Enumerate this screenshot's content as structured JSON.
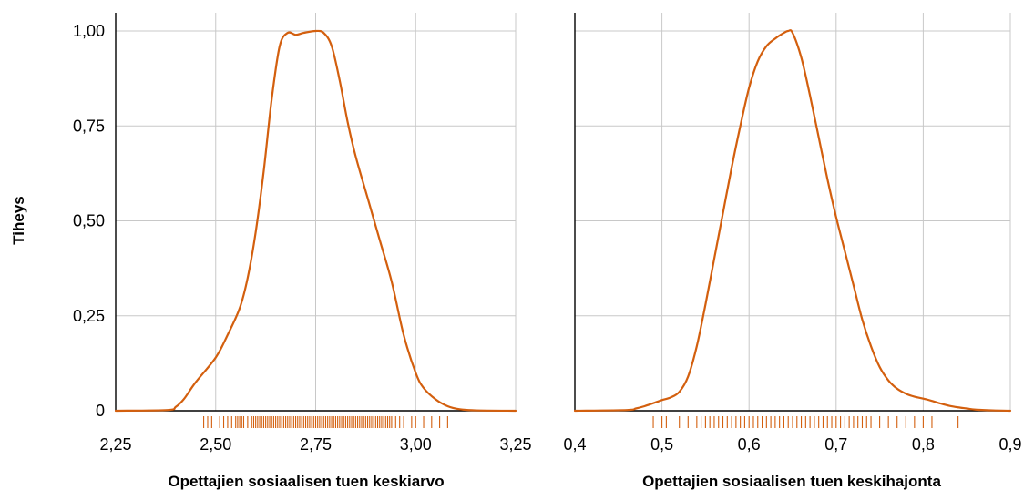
{
  "colors": {
    "density": "#d35f0e",
    "rug": "#d35f0e",
    "grid": "#c8c8c8",
    "axis": "#000000"
  },
  "chart_data": [
    {
      "type": "area",
      "id": "mean",
      "title": "",
      "xlabel": "Opettajien sosiaalisen tuen keskiarvo",
      "ylabel": "Tiheys",
      "xlim": [
        2.25,
        3.25
      ],
      "ylim": [
        0,
        1.0
      ],
      "xticks": [
        2.25,
        2.5,
        2.75,
        3.0,
        3.25
      ],
      "xtick_labels": [
        "2,25",
        "2,50",
        "2,75",
        "3,00",
        "3,25"
      ],
      "yticks": [
        0,
        0.25,
        0.5,
        0.75,
        1.0
      ],
      "ytick_labels": [
        "0",
        "0,25",
        "0,50",
        "0,75",
        "1,00"
      ],
      "grid": true,
      "density": {
        "x": [
          2.25,
          2.38,
          2.4,
          2.42,
          2.45,
          2.5,
          2.53,
          2.56,
          2.58,
          2.6,
          2.62,
          2.64,
          2.66,
          2.68,
          2.7,
          2.72,
          2.75,
          2.77,
          2.79,
          2.81,
          2.83,
          2.85,
          2.88,
          2.91,
          2.94,
          2.97,
          3.0,
          3.02,
          3.05,
          3.08,
          3.11,
          3.15,
          3.25
        ],
        "y": [
          0,
          0.002,
          0.01,
          0.03,
          0.075,
          0.14,
          0.2,
          0.27,
          0.35,
          0.47,
          0.63,
          0.82,
          0.96,
          0.995,
          0.99,
          0.995,
          1.0,
          0.995,
          0.96,
          0.87,
          0.76,
          0.67,
          0.56,
          0.45,
          0.34,
          0.2,
          0.1,
          0.06,
          0.03,
          0.012,
          0.004,
          0.001,
          0
        ]
      },
      "rug": [
        2.47,
        2.48,
        2.49,
        2.51,
        2.52,
        2.53,
        2.54,
        2.55,
        2.555,
        2.56,
        2.565,
        2.57,
        2.58,
        2.59,
        2.595,
        2.6,
        2.605,
        2.61,
        2.615,
        2.62,
        2.625,
        2.63,
        2.635,
        2.64,
        2.645,
        2.65,
        2.655,
        2.66,
        2.665,
        2.67,
        2.675,
        2.68,
        2.685,
        2.69,
        2.695,
        2.7,
        2.705,
        2.71,
        2.715,
        2.72,
        2.725,
        2.73,
        2.735,
        2.74,
        2.745,
        2.75,
        2.755,
        2.76,
        2.765,
        2.77,
        2.775,
        2.78,
        2.785,
        2.79,
        2.795,
        2.8,
        2.805,
        2.81,
        2.815,
        2.82,
        2.825,
        2.83,
        2.835,
        2.84,
        2.845,
        2.85,
        2.855,
        2.86,
        2.865,
        2.87,
        2.875,
        2.88,
        2.885,
        2.89,
        2.895,
        2.9,
        2.905,
        2.91,
        2.915,
        2.92,
        2.925,
        2.93,
        2.935,
        2.94,
        2.95,
        2.96,
        2.97,
        2.99,
        3.0,
        3.02,
        3.04,
        3.06,
        3.08
      ]
    },
    {
      "type": "area",
      "id": "sd",
      "title": "",
      "xlabel": "Opettajien sosiaalisen tuen keskihajonta",
      "ylabel": "",
      "xlim": [
        0.4,
        0.9
      ],
      "ylim": [
        0,
        1.0
      ],
      "xticks": [
        0.4,
        0.5,
        0.6,
        0.7,
        0.8,
        0.9
      ],
      "xtick_labels": [
        "0,4",
        "0,5",
        "0,6",
        "0,7",
        "0,8",
        "0,9"
      ],
      "yticks": [
        0,
        0.25,
        0.5,
        0.75,
        1.0
      ],
      "grid": true,
      "density": {
        "x": [
          0.4,
          0.46,
          0.47,
          0.48,
          0.49,
          0.5,
          0.51,
          0.52,
          0.53,
          0.54,
          0.55,
          0.56,
          0.57,
          0.58,
          0.59,
          0.6,
          0.61,
          0.62,
          0.63,
          0.64,
          0.645,
          0.65,
          0.66,
          0.67,
          0.68,
          0.69,
          0.7,
          0.71,
          0.72,
          0.73,
          0.74,
          0.75,
          0.76,
          0.77,
          0.78,
          0.79,
          0.8,
          0.81,
          0.82,
          0.83,
          0.84,
          0.85,
          0.86,
          0.88,
          0.9
        ],
        "y": [
          0,
          0.002,
          0.006,
          0.012,
          0.02,
          0.028,
          0.035,
          0.05,
          0.09,
          0.17,
          0.28,
          0.4,
          0.52,
          0.64,
          0.75,
          0.85,
          0.92,
          0.96,
          0.98,
          0.995,
          1.0,
          0.995,
          0.93,
          0.83,
          0.72,
          0.61,
          0.51,
          0.42,
          0.33,
          0.24,
          0.17,
          0.115,
          0.08,
          0.058,
          0.045,
          0.037,
          0.032,
          0.026,
          0.019,
          0.013,
          0.009,
          0.006,
          0.003,
          0.001,
          0
        ]
      },
      "rug": [
        0.49,
        0.5,
        0.505,
        0.52,
        0.53,
        0.54,
        0.545,
        0.55,
        0.555,
        0.56,
        0.565,
        0.57,
        0.575,
        0.58,
        0.585,
        0.59,
        0.595,
        0.6,
        0.605,
        0.61,
        0.615,
        0.62,
        0.625,
        0.63,
        0.635,
        0.64,
        0.645,
        0.65,
        0.655,
        0.66,
        0.665,
        0.67,
        0.675,
        0.68,
        0.685,
        0.69,
        0.695,
        0.7,
        0.705,
        0.71,
        0.715,
        0.72,
        0.725,
        0.73,
        0.735,
        0.74,
        0.75,
        0.76,
        0.77,
        0.78,
        0.79,
        0.8,
        0.81,
        0.84
      ]
    }
  ]
}
